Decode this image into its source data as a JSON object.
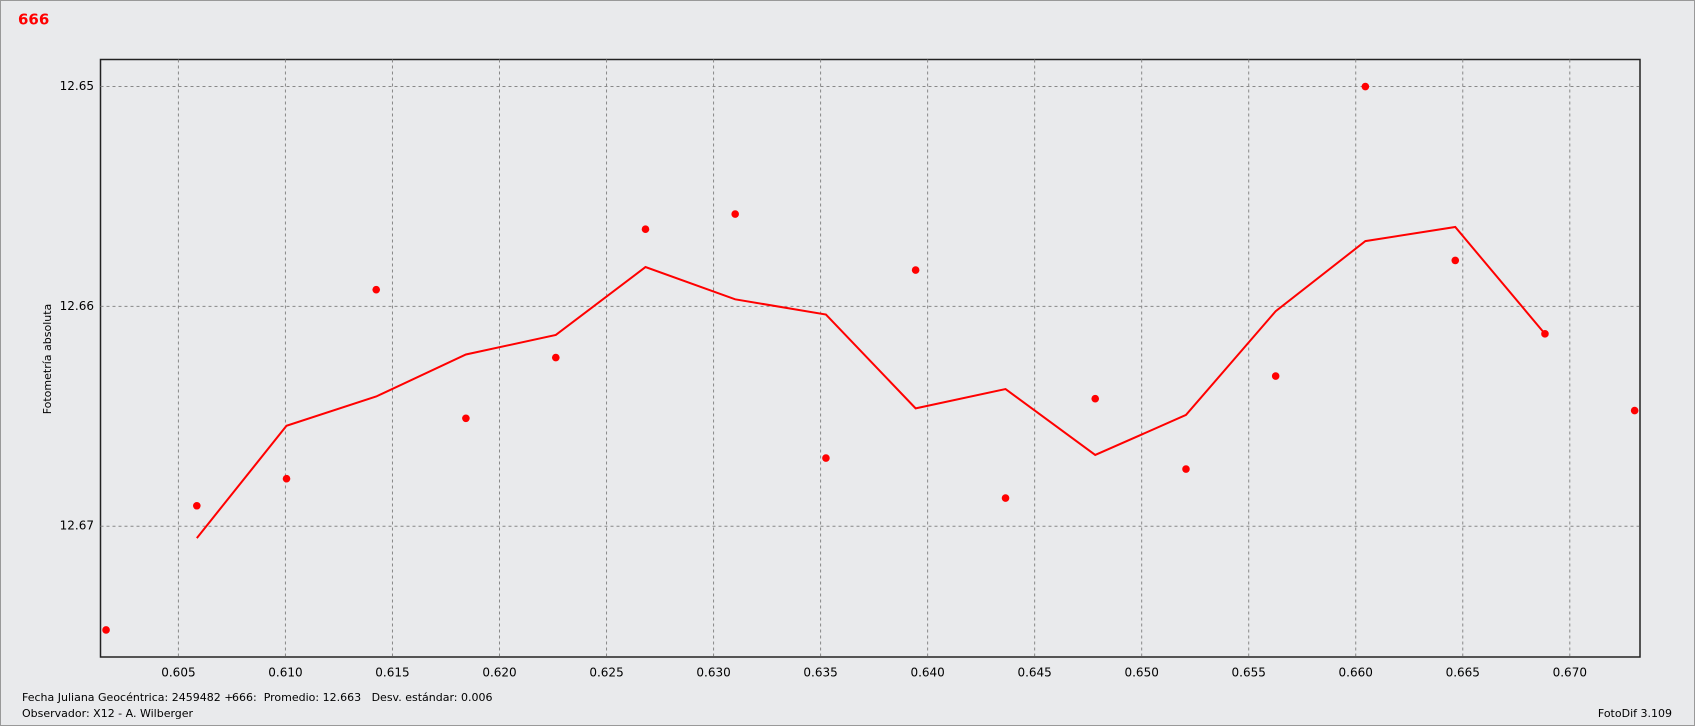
{
  "chart_data": {
    "type": "scatter",
    "title": "666",
    "y_label": "Fotometría absoluta",
    "x": [
      0.60162,
      0.60586,
      0.61005,
      0.61424,
      0.61843,
      0.62263,
      0.62682,
      0.63101,
      0.63525,
      0.63944,
      0.64364,
      0.64783,
      0.65207,
      0.65626,
      0.66045,
      0.66465,
      0.66884,
      0.67303
    ],
    "values": [
      12.67472,
      12.66907,
      12.66784,
      12.65924,
      12.66509,
      12.66233,
      12.65649,
      12.6558,
      12.6669,
      12.65835,
      12.66872,
      12.6642,
      12.6674,
      12.66317,
      12.65,
      12.65791,
      12.66125,
      12.66474
    ],
    "color": "#ff0000",
    "line": {
      "x": [
        0.60586,
        0.61005,
        0.61424,
        0.61843,
        0.62263,
        0.62682,
        0.63101,
        0.63525,
        0.63944,
        0.64364,
        0.64783,
        0.65207,
        0.65626,
        0.66045,
        0.66465,
        0.66884
      ],
      "values": [
        12.67054,
        12.66543,
        12.6641,
        12.66219,
        12.6613,
        12.65821,
        12.65968,
        12.66037,
        12.66464,
        12.66376,
        12.66676,
        12.66494,
        12.66022,
        12.65703,
        12.65639,
        12.66125
      ],
      "color": "#ff0000"
    },
    "xlim": [
      0.60136,
      0.67328
    ],
    "ylim": [
      12.67595,
      12.64877
    ],
    "xticks": [
      {
        "value": 0.605,
        "label": "0.605"
      },
      {
        "value": 0.61,
        "label": "0.610"
      },
      {
        "value": 0.615,
        "label": "0.615"
      },
      {
        "value": 0.62,
        "label": "0.620"
      },
      {
        "value": 0.625,
        "label": "0.625"
      },
      {
        "value": 0.63,
        "label": "0.630"
      },
      {
        "value": 0.635,
        "label": "0.635"
      },
      {
        "value": 0.64,
        "label": "0.640"
      },
      {
        "value": 0.645,
        "label": "0.645"
      },
      {
        "value": 0.65,
        "label": "0.650"
      },
      {
        "value": 0.655,
        "label": "0.655"
      },
      {
        "value": 0.66,
        "label": "0.660"
      },
      {
        "value": 0.665,
        "label": "0.665"
      },
      {
        "value": 0.67,
        "label": "0.670"
      }
    ],
    "yticks": [
      12.65,
      12.66,
      12.67
    ],
    "grid": true
  },
  "footer": {
    "date": "Fecha Juliana Geocéntrica: 2459482 +",
    "stats": "666:  Promedio: 12.663   Desv. estándar: 0.006",
    "observer": "Observador: X12 - A. Wilberger",
    "version": "FotoDif 3.109"
  }
}
